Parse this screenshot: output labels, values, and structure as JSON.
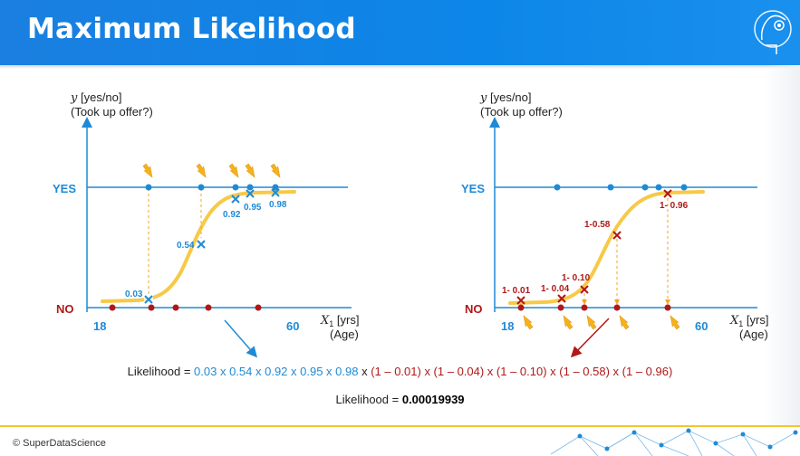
{
  "header": {
    "title": "Maximum Likelihood"
  },
  "left_chart": {
    "ylabel_line1": "y [yes/no]",
    "ylabel_line2": "(Took up offer?)",
    "yes_label": "YES",
    "no_label": "NO",
    "x_start": "18",
    "x_end": "60",
    "xlabel_var": "X",
    "xlabel_sub": "1",
    "xlabel_unit": " [yrs]",
    "xlabel_line2": "(Age)",
    "point_labels": [
      "0.03",
      "0.54",
      "0.92",
      "0.95",
      "0.98"
    ]
  },
  "right_chart": {
    "ylabel_line1": "y [yes/no]",
    "ylabel_line2": "(Took up offer?)",
    "yes_label": "YES",
    "no_label": "NO",
    "x_start": "18",
    "x_end": "60",
    "xlabel_var": "X",
    "xlabel_sub": "1",
    "xlabel_unit": " [yrs]",
    "xlabel_line2": "(Age)",
    "point_labels": [
      "1- 0.01",
      "1- 0.04",
      "1- 0.10",
      "1-0.58",
      "1- 0.96"
    ]
  },
  "formula": {
    "prefix": "Likelihood = ",
    "yes_terms": "0.03 x 0.54 x 0.92 x 0.95 x 0.98",
    "joiner": " x ",
    "no_terms": "(1 – 0.01) x (1 – 0.04) x (1 – 0.10) x (1 – 0.58) x (1 – 0.96)",
    "result_prefix": "Likelihood = ",
    "result_value": "0.00019939"
  },
  "footer": {
    "copyright": "© SuperDataScience"
  },
  "colors": {
    "header_blue": "#1a7fe0",
    "axis_blue": "#1e8ad6",
    "no_red": "#b01818",
    "curve_yellow": "#f7c948",
    "arrow_orange": "#f5b21b"
  }
}
